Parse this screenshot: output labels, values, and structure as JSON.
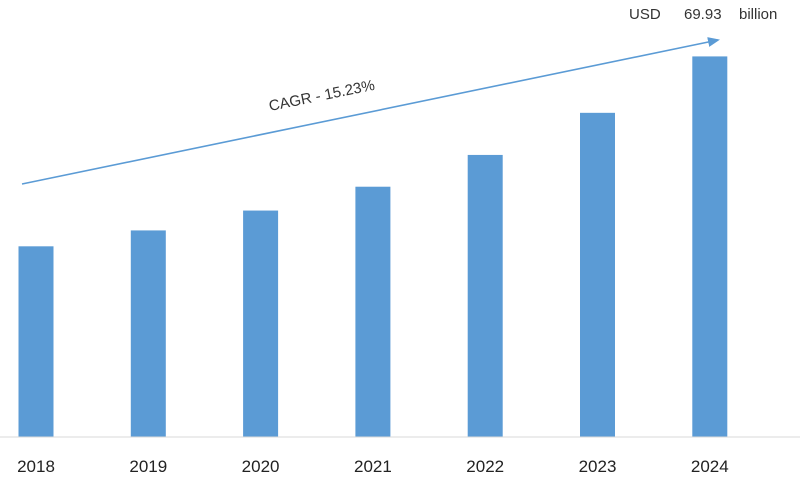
{
  "chart_data": {
    "type": "bar",
    "categories": [
      "2018",
      "2019",
      "2020",
      "2021",
      "2022",
      "2023",
      "2024"
    ],
    "values": [
      24.0,
      26.0,
      28.5,
      31.5,
      35.5,
      40.8,
      47.9
    ],
    "ylim": [
      0,
      55
    ],
    "grid": false,
    "legend": "none",
    "bar_color": "#5b9bd5",
    "arrow_color": "#5b9bd5",
    "annotations": {
      "cagr": "CAGR - 15.23%",
      "value_unit": "USD",
      "value_amount": "69.93",
      "value_suffix": "billion"
    }
  }
}
